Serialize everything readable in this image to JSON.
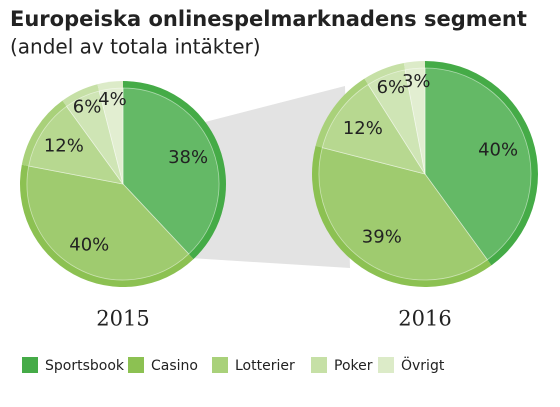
{
  "chart_data": {
    "type": "pie",
    "title": "Europeiska onlinespelmarknadens segment",
    "subtitle": "(andel av totala intäkter)",
    "categories": [
      "Sportsbook",
      "Casino",
      "Lotterier",
      "Poker",
      "Övrigt"
    ],
    "colors": [
      "#45ab47",
      "#8cc152",
      "#a9d17a",
      "#c6e0a6",
      "#dcebc8"
    ],
    "series": [
      {
        "name": "2015",
        "values": [
          38,
          40,
          12,
          6,
          4
        ],
        "value_labels": [
          "38%",
          "40%",
          "12%",
          "6%",
          "4%"
        ]
      },
      {
        "name": "2016",
        "values": [
          40,
          39,
          12,
          6,
          3
        ],
        "value_labels": [
          "40%",
          "39%",
          "12%",
          "6%",
          "3%"
        ]
      }
    ]
  }
}
